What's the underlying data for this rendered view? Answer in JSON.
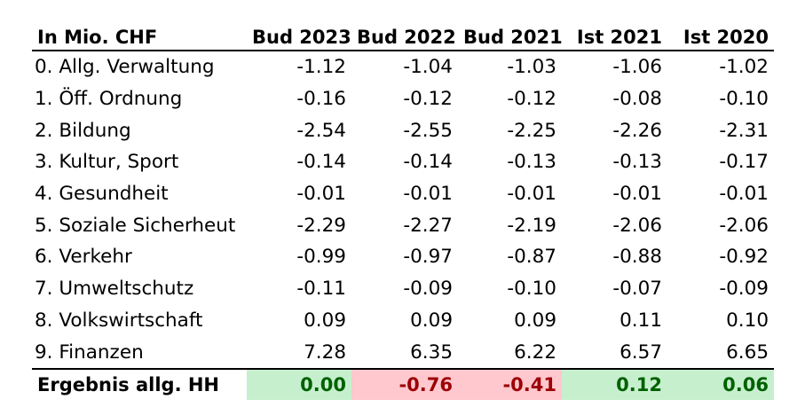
{
  "header": {
    "label": "In Mio. CHF",
    "columns": [
      "Bud 2023",
      "Bud 2022",
      "Bud 2021",
      "Ist 2021",
      "Ist 2020"
    ]
  },
  "rows": [
    {
      "label": "0. Allg. Verwaltung",
      "values": [
        "-1.12",
        "-1.04",
        "-1.03",
        "-1.06",
        "-1.02"
      ]
    },
    {
      "label": "1. Öff. Ordnung",
      "values": [
        "-0.16",
        "-0.12",
        "-0.12",
        "-0.08",
        "-0.10"
      ]
    },
    {
      "label": "2. Bildung",
      "values": [
        "-2.54",
        "-2.55",
        "-2.25",
        "-2.26",
        "-2.31"
      ]
    },
    {
      "label": "3. Kultur, Sport",
      "values": [
        "-0.14",
        "-0.14",
        "-0.13",
        "-0.13",
        "-0.17"
      ]
    },
    {
      "label": "4. Gesundheit",
      "values": [
        "-0.01",
        "-0.01",
        "-0.01",
        "-0.01",
        "-0.01"
      ]
    },
    {
      "label": "5. Soziale Sicherheut",
      "values": [
        "-2.29",
        "-2.27",
        "-2.19",
        "-2.06",
        "-2.06"
      ]
    },
    {
      "label": "6. Verkehr",
      "values": [
        "-0.99",
        "-0.97",
        "-0.87",
        "-0.88",
        "-0.92"
      ]
    },
    {
      "label": "7. Umweltschutz",
      "values": [
        "-0.11",
        "-0.09",
        "-0.10",
        "-0.07",
        "-0.09"
      ]
    },
    {
      "label": "8. Volkswirtschaft",
      "values": [
        "0.09",
        "0.09",
        "0.09",
        "0.11",
        "0.10"
      ]
    },
    {
      "label": "9. Finanzen",
      "values": [
        "7.28",
        "6.35",
        "6.22",
        "6.57",
        "6.65"
      ]
    }
  ],
  "total": {
    "label": "Ergebnis allg. HH",
    "values": [
      "0.00",
      "-0.76",
      "-0.41",
      "0.12",
      "0.06"
    ],
    "status": [
      "positive",
      "negative",
      "negative",
      "positive",
      "positive"
    ]
  },
  "colors": {
    "positive_fill": "#c6efce",
    "positive_text": "#006100",
    "negative_fill": "#ffc7ce",
    "negative_text": "#9c0006"
  }
}
